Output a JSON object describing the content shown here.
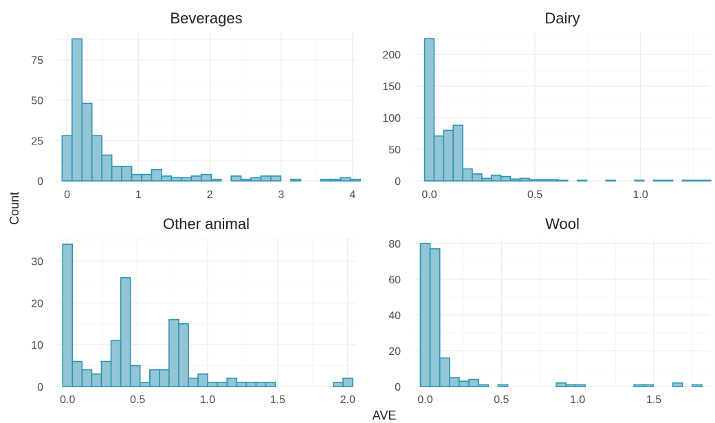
{
  "chart_data": {
    "type": "bar",
    "xlabel": "AVE",
    "ylabel": "Count",
    "grid": true,
    "bar_fill": "#92c5d6",
    "bar_stroke": "#2f93b4",
    "facets": [
      {
        "title": "Beverages",
        "xlim": [
          -0.15,
          4.05
        ],
        "ylim": [
          0,
          92
        ],
        "xticks": [
          0,
          1,
          2,
          3,
          4
        ],
        "xtick_labels": [
          "0",
          "1",
          "2",
          "3",
          "4"
        ],
        "yticks": [
          0,
          25,
          50,
          75
        ],
        "ytick_labels": [
          "0",
          "25",
          "50",
          "75"
        ],
        "bin_start": -0.0697,
        "bin_width": 0.1393,
        "counts": [
          28,
          88,
          48,
          28,
          16,
          9,
          9,
          4,
          4,
          7,
          3,
          2,
          2,
          3,
          4,
          1,
          0,
          3,
          1,
          2,
          3,
          3,
          0,
          1,
          0,
          0,
          1,
          1,
          2,
          1
        ]
      },
      {
        "title": "Dairy",
        "xlim": [
          -0.07,
          1.33
        ],
        "ylim": [
          0,
          235
        ],
        "xticks": [
          0,
          0.5,
          1.0
        ],
        "xtick_labels": [
          "0.0",
          "0.5",
          "1.0"
        ],
        "yticks": [
          0,
          50,
          100,
          150,
          200
        ],
        "ytick_labels": [
          "0",
          "50",
          "100",
          "150",
          "200"
        ],
        "bin_start": -0.0226,
        "bin_width": 0.0452,
        "counts": [
          225,
          71,
          80,
          88,
          19,
          11,
          4,
          9,
          7,
          3,
          4,
          2,
          2,
          2,
          1,
          0,
          1,
          0,
          0,
          1,
          0,
          0,
          1,
          0,
          1,
          1,
          0,
          1,
          1,
          1
        ]
      },
      {
        "title": "Other animal",
        "xlim": [
          -0.08,
          2.06
        ],
        "ylim": [
          0,
          35.5
        ],
        "xticks": [
          0,
          0.5,
          1.0,
          1.5,
          2.0
        ],
        "xtick_labels": [
          "0.0",
          "0.5",
          "1.0",
          "1.5",
          "2.0"
        ],
        "yticks": [
          0,
          10,
          20,
          30
        ],
        "ytick_labels": [
          "0",
          "10",
          "20",
          "30"
        ],
        "bin_start": -0.0345,
        "bin_width": 0.069,
        "counts": [
          34,
          6,
          4,
          3,
          6,
          11,
          26,
          5,
          1,
          4,
          4,
          16,
          15,
          2,
          3,
          1,
          1,
          2,
          1,
          1,
          1,
          1,
          0,
          0,
          0,
          0,
          0,
          0,
          1,
          2
        ]
      },
      {
        "title": "Wool",
        "xlim": [
          -0.07,
          1.87
        ],
        "ylim": [
          0,
          83
        ],
        "xticks": [
          0,
          0.5,
          1.0,
          1.5
        ],
        "xtick_labels": [
          "0.0",
          "0.5",
          "1.0",
          "1.5"
        ],
        "yticks": [
          0,
          20,
          40,
          60,
          80
        ],
        "ytick_labels": [
          "0",
          "20",
          "40",
          "60",
          "80"
        ],
        "bin_start": -0.0319,
        "bin_width": 0.0637,
        "counts": [
          80,
          77,
          16,
          5,
          3,
          4,
          1,
          0,
          1,
          0,
          0,
          0,
          0,
          0,
          2,
          1,
          1,
          0,
          0,
          0,
          0,
          0,
          1,
          1,
          0,
          0,
          2,
          0,
          1,
          0
        ]
      }
    ]
  }
}
